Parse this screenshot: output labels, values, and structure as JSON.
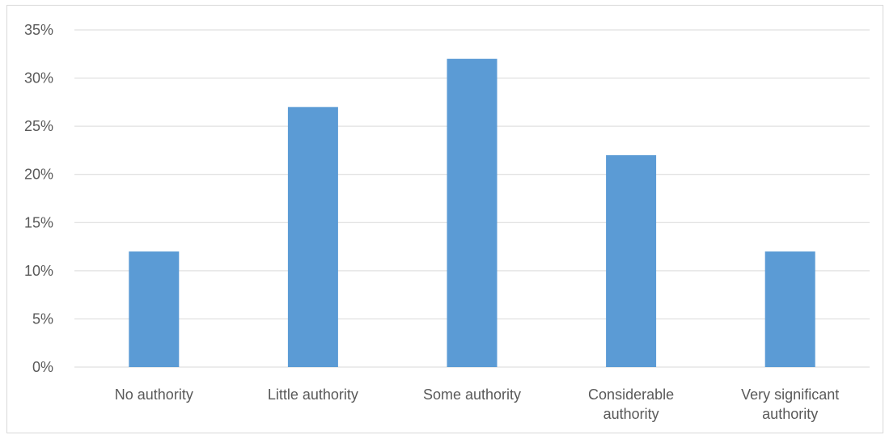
{
  "chart_data": {
    "type": "bar",
    "title": "",
    "xlabel": "",
    "ylabel": "",
    "categories": [
      [
        "No authority"
      ],
      [
        "Little authority"
      ],
      [
        "Some authority"
      ],
      [
        "Considerable",
        "authority"
      ],
      [
        "Very significant",
        "authority"
      ]
    ],
    "values": [
      12,
      27,
      32,
      22,
      12
    ],
    "value_unit": "%",
    "ylim": [
      0,
      35
    ],
    "yticks": [
      0,
      5,
      10,
      15,
      20,
      25,
      30,
      35
    ],
    "ytick_labels": [
      "0%",
      "5%",
      "10%",
      "15%",
      "20%",
      "25%",
      "30%",
      "35%"
    ],
    "grid": true,
    "legend": "none",
    "bar_color": "#5b9bd5",
    "grid_color": "#d9d9d9"
  }
}
